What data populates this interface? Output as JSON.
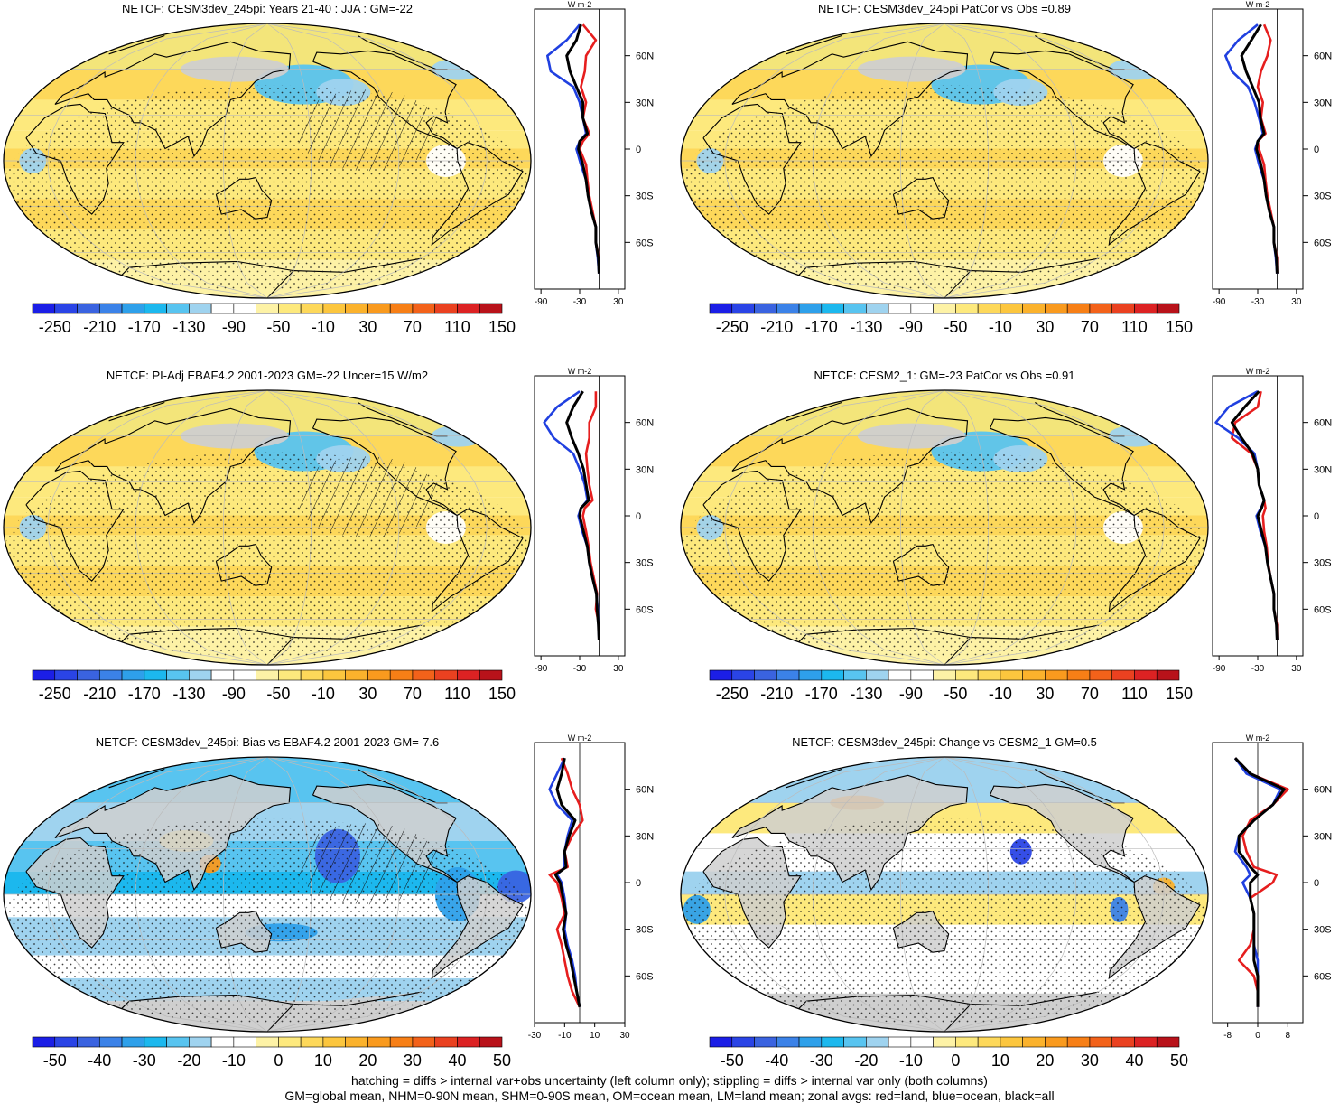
{
  "panels": [
    {
      "title": "NETCF: CESM3dev_245pi: Years 21-40 : JJA : GM=-22",
      "type": "absolute"
    },
    {
      "title": "NETCF: CESM3dev_245pi PatCor vs Obs =0.89",
      "type": "absolute"
    },
    {
      "title": "NETCF: PI-Adj EBAF4.2 2001-2023 GM=-22 Uncer=15 W/m2",
      "type": "absolute"
    },
    {
      "title": "NETCF: CESM2_1: GM=-23 PatCor vs Obs =0.91",
      "type": "absolute"
    },
    {
      "title": "NETCF: CESM3dev_245pi: Bias vs EBAF4.2 2001-2023 GM=-7.6",
      "type": "bias"
    },
    {
      "title": "NETCF: CESM3dev_245pi: Change vs CESM2_1 GM=0.5",
      "type": "change"
    }
  ],
  "colorbars": {
    "absolute": {
      "labels": [
        "-250",
        "-210",
        "-170",
        "-130",
        "-90",
        "-50",
        "-10",
        "30",
        "70",
        "110",
        "150"
      ],
      "colors": [
        "#1b1ee6",
        "#2a44e6",
        "#3a63e0",
        "#3b82e8",
        "#2ea0ea",
        "#1cb8ee",
        "#58c4f0",
        "#9fd3ef",
        "#ffffff",
        "#ffffff",
        "#fdf2a6",
        "#fde97d",
        "#fdd85a",
        "#fcc63e",
        "#fbb22c",
        "#f99a1e",
        "#f77f16",
        "#f3621a",
        "#ea4120",
        "#dc2223",
        "#b8121a"
      ]
    },
    "bias": {
      "labels": [
        "-50",
        "-40",
        "-30",
        "-20",
        "-10",
        "0",
        "10",
        "20",
        "30",
        "40",
        "50"
      ],
      "colors": [
        "#1b1ee6",
        "#2a44e6",
        "#3a63e0",
        "#3b82e8",
        "#2ea0ea",
        "#1cb8ee",
        "#58c4f0",
        "#9fd3ef",
        "#ffffff",
        "#ffffff",
        "#fdf2a6",
        "#fde97d",
        "#fdd85a",
        "#fcc63e",
        "#fbb22c",
        "#f99a1e",
        "#f77f16",
        "#f3621a",
        "#ea4120",
        "#dc2223",
        "#b8121a"
      ]
    }
  },
  "colors": {
    "land": "#cfcfcf",
    "ocean_line": "#2040e0",
    "land_line": "#e61e1e",
    "all_line": "#000000"
  },
  "chart_data": [
    {
      "type": "line",
      "panel": 1,
      "unit": "W m-2",
      "y_ticks": [
        "60N",
        "30N",
        "0",
        "30S",
        "60S"
      ],
      "x_ticks": [
        "-90",
        "-30",
        "30"
      ],
      "xlim": [
        -100,
        40
      ],
      "series": [
        {
          "name": "red",
          "lat": [
            80,
            70,
            60,
            50,
            40,
            30,
            20,
            10,
            5,
            0,
            -10,
            -20,
            -30,
            -40,
            -50,
            -60,
            -70,
            -80
          ],
          "values": [
            -25,
            -5,
            -20,
            -22,
            -28,
            -20,
            -25,
            -15,
            -25,
            -30,
            -20,
            -18,
            -15,
            -10,
            -5,
            -5,
            0,
            0
          ]
        },
        {
          "name": "blue",
          "lat": [
            80,
            70,
            60,
            50,
            40,
            30,
            20,
            10,
            5,
            0,
            -10,
            -20,
            -30,
            -40,
            -50,
            -60,
            -70,
            -80
          ],
          "values": [
            -30,
            -50,
            -80,
            -75,
            -40,
            -30,
            -25,
            -20,
            -30,
            -35,
            -28,
            -20,
            -17,
            -12,
            -5,
            -5,
            -2,
            0
          ]
        },
        {
          "name": "black",
          "lat": [
            80,
            70,
            60,
            50,
            40,
            30,
            20,
            10,
            5,
            0,
            -10,
            -20,
            -30,
            -40,
            -50,
            -60,
            -70,
            -80
          ],
          "values": [
            -28,
            -35,
            -50,
            -45,
            -35,
            -25,
            -25,
            -18,
            -30,
            -32,
            -25,
            -20,
            -17,
            -12,
            -5,
            -5,
            -1,
            0
          ]
        }
      ]
    },
    {
      "type": "line",
      "panel": 2,
      "unit": "W m-2",
      "y_ticks": [
        "60N",
        "30N",
        "0",
        "30S",
        "60S"
      ],
      "x_ticks": [
        "-90",
        "-30",
        "30"
      ],
      "xlim": [
        -100,
        40
      ],
      "series": [
        {
          "name": "red",
          "lat": [
            80,
            70,
            60,
            50,
            40,
            30,
            20,
            10,
            5,
            0,
            -10,
            -20,
            -30,
            -40,
            -50,
            -60,
            -70,
            -80
          ],
          "values": [
            -20,
            -10,
            -15,
            -25,
            -30,
            -22,
            -25,
            -18,
            -30,
            -28,
            -20,
            -18,
            -15,
            -10,
            -5,
            -5,
            0,
            0
          ]
        },
        {
          "name": "blue",
          "lat": [
            80,
            70,
            60,
            50,
            40,
            30,
            20,
            10,
            5,
            0,
            -10,
            -20,
            -30,
            -40,
            -50,
            -60,
            -70,
            -80
          ],
          "values": [
            -30,
            -60,
            -80,
            -70,
            -45,
            -35,
            -28,
            -22,
            -30,
            -34,
            -28,
            -20,
            -17,
            -12,
            -5,
            -5,
            -2,
            0
          ]
        },
        {
          "name": "black",
          "lat": [
            80,
            70,
            60,
            50,
            40,
            30,
            20,
            10,
            5,
            0,
            -10,
            -20,
            -30,
            -40,
            -50,
            -60,
            -70,
            -80
          ],
          "values": [
            -25,
            -40,
            -55,
            -48,
            -38,
            -28,
            -26,
            -20,
            -30,
            -32,
            -25,
            -20,
            -17,
            -12,
            -5,
            -5,
            -1,
            0
          ]
        }
      ]
    },
    {
      "type": "line",
      "panel": 3,
      "unit": "W m-2",
      "y_ticks": [
        "60N",
        "30N",
        "0",
        "30S",
        "60S"
      ],
      "x_ticks": [
        "-90",
        "-30",
        "30"
      ],
      "xlim": [
        -100,
        40
      ],
      "series": [
        {
          "name": "red",
          "lat": [
            80,
            70,
            60,
            50,
            40,
            30,
            20,
            10,
            5,
            0,
            -10,
            -20,
            -30,
            -40,
            -50,
            -60,
            -70,
            -80
          ],
          "values": [
            -5,
            -5,
            -15,
            -15,
            -20,
            -18,
            -15,
            -10,
            -22,
            -25,
            -20,
            -16,
            -13,
            -8,
            -3,
            -5,
            0,
            0
          ]
        },
        {
          "name": "blue",
          "lat": [
            80,
            70,
            60,
            50,
            40,
            30,
            20,
            10,
            5,
            0,
            -10,
            -20,
            -30,
            -40,
            -50,
            -60,
            -70,
            -80
          ],
          "values": [
            -30,
            -65,
            -85,
            -70,
            -40,
            -30,
            -22,
            -18,
            -28,
            -32,
            -26,
            -18,
            -15,
            -10,
            -4,
            -2,
            -1,
            0
          ]
        },
        {
          "name": "black",
          "lat": [
            80,
            70,
            60,
            50,
            40,
            30,
            20,
            10,
            5,
            0,
            -10,
            -20,
            -30,
            -40,
            -50,
            -60,
            -70,
            -80
          ],
          "values": [
            -25,
            -40,
            -50,
            -42,
            -32,
            -24,
            -20,
            -16,
            -28,
            -30,
            -24,
            -18,
            -15,
            -10,
            -4,
            -3,
            -1,
            0
          ]
        }
      ]
    },
    {
      "type": "line",
      "panel": 4,
      "unit": "W m-2",
      "y_ticks": [
        "60N",
        "30N",
        "0",
        "30S",
        "60S"
      ],
      "x_ticks": [
        "-90",
        "-30",
        "30"
      ],
      "xlim": [
        -100,
        40
      ],
      "series": [
        {
          "name": "red",
          "lat": [
            80,
            70,
            60,
            50,
            40,
            30,
            20,
            10,
            5,
            0,
            -10,
            -20,
            -30,
            -40,
            -50,
            -60,
            -70,
            -80
          ],
          "values": [
            -25,
            -30,
            -65,
            -70,
            -40,
            -30,
            -28,
            -20,
            -18,
            -22,
            -20,
            -16,
            -14,
            -10,
            -5,
            -5,
            0,
            0
          ]
        },
        {
          "name": "blue",
          "lat": [
            80,
            70,
            60,
            50,
            40,
            30,
            20,
            10,
            5,
            0,
            -10,
            -20,
            -30,
            -40,
            -50,
            -60,
            -70,
            -80
          ],
          "values": [
            -30,
            -75,
            -95,
            -60,
            -35,
            -30,
            -28,
            -20,
            -25,
            -32,
            -26,
            -18,
            -15,
            -10,
            -5,
            -5,
            -1,
            0
          ]
        },
        {
          "name": "black",
          "lat": [
            80,
            70,
            60,
            50,
            40,
            30,
            20,
            10,
            5,
            0,
            -10,
            -20,
            -30,
            -40,
            -50,
            -60,
            -70,
            -80
          ],
          "values": [
            -28,
            -50,
            -70,
            -55,
            -38,
            -30,
            -28,
            -20,
            -24,
            -30,
            -24,
            -18,
            -15,
            -10,
            -5,
            -5,
            -1,
            0
          ]
        }
      ]
    },
    {
      "type": "line",
      "panel": 5,
      "unit": "W m-2",
      "y_ticks": [
        "60N",
        "30N",
        "0",
        "30S",
        "60S"
      ],
      "x_ticks": [
        "-30",
        "-10",
        "10",
        "30"
      ],
      "xlim": [
        -30,
        30
      ],
      "series": [
        {
          "name": "red",
          "lat": [
            80,
            70,
            60,
            50,
            40,
            30,
            20,
            10,
            5,
            0,
            -10,
            -20,
            -30,
            -40,
            -50,
            -60,
            -70,
            -80
          ],
          "values": [
            -12,
            -8,
            -5,
            0,
            2,
            -5,
            -10,
            -8,
            -20,
            -15,
            -12,
            -10,
            -15,
            -12,
            -10,
            -8,
            -5,
            0
          ]
        },
        {
          "name": "blue",
          "lat": [
            80,
            70,
            60,
            50,
            40,
            30,
            20,
            10,
            5,
            0,
            -10,
            -20,
            -30,
            -40,
            -50,
            -60,
            -70,
            -80
          ],
          "values": [
            -10,
            -15,
            -20,
            -15,
            -5,
            -8,
            -10,
            -10,
            -15,
            -12,
            -10,
            -9,
            -10,
            -8,
            -5,
            -3,
            -2,
            0
          ]
        },
        {
          "name": "black",
          "lat": [
            80,
            70,
            60,
            50,
            40,
            30,
            20,
            10,
            5,
            0,
            -10,
            -20,
            -30,
            -40,
            -50,
            -60,
            -70,
            -80
          ],
          "values": [
            -10,
            -12,
            -15,
            -12,
            -3,
            -7,
            -10,
            -9,
            -16,
            -13,
            -11,
            -9,
            -11,
            -9,
            -6,
            -4,
            -2,
            0
          ]
        }
      ]
    },
    {
      "type": "line",
      "panel": 6,
      "unit": "W m-2",
      "y_ticks": [
        "60N",
        "30N",
        "0",
        "30S",
        "60S"
      ],
      "x_ticks": [
        "-8",
        "0",
        "8"
      ],
      "xlim": [
        -12,
        12
      ],
      "series": [
        {
          "name": "red",
          "lat": [
            80,
            70,
            60,
            50,
            40,
            30,
            20,
            10,
            5,
            0,
            -10,
            -20,
            -30,
            -40,
            -50,
            -60,
            -70,
            -80
          ],
          "values": [
            -6,
            -2,
            8,
            4,
            -2,
            -4,
            -3,
            -1,
            5,
            4,
            -2,
            -1,
            -1,
            -2,
            -5,
            -1,
            0,
            0
          ]
        },
        {
          "name": "blue",
          "lat": [
            80,
            70,
            60,
            50,
            40,
            30,
            20,
            10,
            5,
            0,
            -10,
            -20,
            -30,
            -40,
            -50,
            -60,
            -70,
            -80
          ],
          "values": [
            -6,
            -3,
            6,
            4,
            -1,
            -5,
            -6,
            -3,
            -2,
            -4,
            -2,
            -1,
            -1,
            -1,
            0,
            0,
            0,
            0
          ]
        },
        {
          "name": "black",
          "lat": [
            80,
            70,
            60,
            50,
            40,
            30,
            20,
            10,
            5,
            0,
            -10,
            -20,
            -30,
            -40,
            -50,
            -60,
            -70,
            -80
          ],
          "values": [
            -6,
            -2,
            7,
            4,
            -1,
            -5,
            -5,
            -2,
            0,
            -2,
            -2,
            -1,
            -1,
            -1,
            -1,
            0,
            0,
            0
          ]
        }
      ]
    }
  ],
  "footer": {
    "line1": "hatching = diffs > internal var+obs uncertainty (left column only); stippling = diffs > internal var only (both columns)",
    "line2": "GM=global mean, NHM=0-90N mean, SHM=0-90S mean, OM=ocean mean, LM=land mean; zonal avgs: red=land, blue=ocean, black=all"
  }
}
